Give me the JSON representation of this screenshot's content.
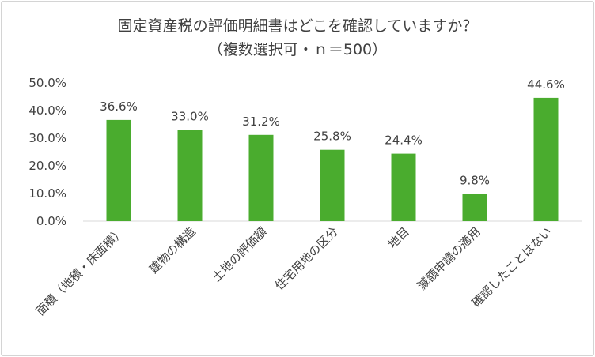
{
  "chart_data": {
    "type": "bar",
    "title": "固定資産税の評価明細書はどこを確認していますか？",
    "subtitle": "（複数選択可・ｎ＝500）",
    "xlabel": "",
    "ylabel": "",
    "ylim": [
      0,
      50
    ],
    "yticks": [
      "0.0%",
      "10.0%",
      "20.0%",
      "30.0%",
      "40.0%",
      "50.0%"
    ],
    "categories": [
      "面積（地積・床面積）",
      "建物の構造",
      "土地の評価額",
      "住宅用地の区分",
      "地目",
      "減額申請の適用",
      "確認したことはない"
    ],
    "values": [
      36.6,
      33.0,
      31.2,
      25.8,
      24.4,
      9.8,
      44.6
    ],
    "value_labels": [
      "36.6%",
      "33.0%",
      "31.2%",
      "25.8%",
      "24.4%",
      "9.8%",
      "44.6%"
    ],
    "bar_color": "#4aac2e",
    "grid": false,
    "legend": "none"
  }
}
